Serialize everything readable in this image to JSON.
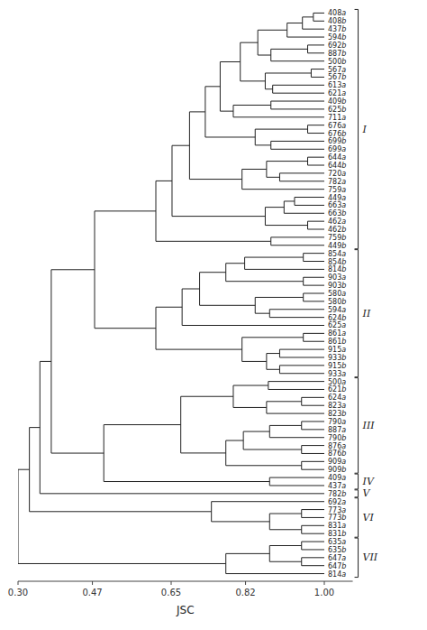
{
  "chart_data": {
    "type": "dendrogram",
    "xlabel": "JSC",
    "xlim": [
      0.3,
      1.065
    ],
    "xticks": [
      {
        "value": 0.3,
        "label": "0.30"
      },
      {
        "value": 0.47,
        "label": "0.47"
      },
      {
        "value": 0.65,
        "label": "0.65"
      },
      {
        "value": 0.82,
        "label": "0.82"
      },
      {
        "value": 1.0,
        "label": "1.00"
      }
    ],
    "leaf_height": 1.0,
    "categories": [
      "408a",
      "408b",
      "437b",
      "594b",
      "692b",
      "887b",
      "500b",
      "567a",
      "567b",
      "613a",
      "621a",
      "409b",
      "625b",
      "711a",
      "676a",
      "676b",
      "699b",
      "699a",
      "644a",
      "644b",
      "720a",
      "782a",
      "759a",
      "449a",
      "663a",
      "663b",
      "462a",
      "462b",
      "759b",
      "449b",
      "854a",
      "854b",
      "814b",
      "903a",
      "903b",
      "580a",
      "580b",
      "594a",
      "624b",
      "625a",
      "861a",
      "861b",
      "915a",
      "933b",
      "915b",
      "933a",
      "500a",
      "621b",
      "624a",
      "823a",
      "823b",
      "790a",
      "887a",
      "790b",
      "876a",
      "876b",
      "909a",
      "909b",
      "409a",
      "437a",
      "782b",
      "692a",
      "773a",
      "773b",
      "831a",
      "831b",
      "635a",
      "635b",
      "647a",
      "647b",
      "814a"
    ],
    "merges": [
      {
        "left": 0,
        "right": 1,
        "height": 0.975
      },
      {
        "left": 71,
        "right": 2,
        "height": 0.95
      },
      {
        "left": 72,
        "right": 3,
        "height": 0.915
      },
      {
        "left": 4,
        "right": 5,
        "height": 0.962
      },
      {
        "left": 74,
        "right": 6,
        "height": 0.878
      },
      {
        "left": 73,
        "right": 75,
        "height": 0.848
      },
      {
        "left": 7,
        "right": 8,
        "height": 0.97
      },
      {
        "left": 9,
        "right": 10,
        "height": 0.882
      },
      {
        "left": 77,
        "right": 78,
        "height": 0.865
      },
      {
        "left": 76,
        "right": 79,
        "height": 0.808
      },
      {
        "left": 11,
        "right": 12,
        "height": 0.878
      },
      {
        "left": 81,
        "right": 13,
        "height": 0.792
      },
      {
        "left": 80,
        "right": 82,
        "height": 0.762
      },
      {
        "left": 14,
        "right": 15,
        "height": 0.962
      },
      {
        "left": 16,
        "right": 17,
        "height": 0.878
      },
      {
        "left": 84,
        "right": 85,
        "height": 0.842
      },
      {
        "left": 83,
        "right": 86,
        "height": 0.728
      },
      {
        "left": 18,
        "right": 19,
        "height": 0.962
      },
      {
        "left": 20,
        "right": 21,
        "height": 0.898
      },
      {
        "left": 88,
        "right": 89,
        "height": 0.868
      },
      {
        "left": 90,
        "right": 22,
        "height": 0.812
      },
      {
        "left": 87,
        "right": 91,
        "height": 0.692
      },
      {
        "left": 23,
        "right": 24,
        "height": 0.932
      },
      {
        "left": 93,
        "right": 25,
        "height": 0.908
      },
      {
        "left": 26,
        "right": 27,
        "height": 0.962
      },
      {
        "left": 94,
        "right": 95,
        "height": 0.865
      },
      {
        "left": 92,
        "right": 96,
        "height": 0.652
      },
      {
        "left": 28,
        "right": 29,
        "height": 0.878
      },
      {
        "left": 97,
        "right": 98,
        "height": 0.615
      },
      {
        "left": 30,
        "right": 31,
        "height": 0.952
      },
      {
        "left": 100,
        "right": 32,
        "height": 0.818
      },
      {
        "left": 33,
        "right": 34,
        "height": 0.952
      },
      {
        "left": 101,
        "right": 102,
        "height": 0.775
      },
      {
        "left": 35,
        "right": 36,
        "height": 0.952
      },
      {
        "left": 37,
        "right": 38,
        "height": 0.875
      },
      {
        "left": 104,
        "right": 105,
        "height": 0.842
      },
      {
        "left": 103,
        "right": 106,
        "height": 0.715
      },
      {
        "left": 107,
        "right": 39,
        "height": 0.675
      },
      {
        "left": 40,
        "right": 41,
        "height": 0.952
      },
      {
        "left": 42,
        "right": 43,
        "height": 0.898
      },
      {
        "left": 44,
        "right": 45,
        "height": 0.898
      },
      {
        "left": 110,
        "right": 111,
        "height": 0.868
      },
      {
        "left": 109,
        "right": 112,
        "height": 0.812
      },
      {
        "left": 108,
        "right": 113,
        "height": 0.615
      },
      {
        "left": 99,
        "right": 114,
        "height": 0.475
      },
      {
        "left": 46,
        "right": 47,
        "height": 0.872
      },
      {
        "left": 48,
        "right": 49,
        "height": 0.948
      },
      {
        "left": 117,
        "right": 50,
        "height": 0.868
      },
      {
        "left": 116,
        "right": 118,
        "height": 0.792
      },
      {
        "left": 51,
        "right": 52,
        "height": 0.948
      },
      {
        "left": 120,
        "right": 53,
        "height": 0.875
      },
      {
        "left": 54,
        "right": 55,
        "height": 0.948
      },
      {
        "left": 121,
        "right": 122,
        "height": 0.815
      },
      {
        "left": 56,
        "right": 57,
        "height": 0.948
      },
      {
        "left": 123,
        "right": 124,
        "height": 0.775
      },
      {
        "left": 119,
        "right": 125,
        "height": 0.672
      },
      {
        "left": 58,
        "right": 59,
        "height": 0.875
      },
      {
        "left": 126,
        "right": 127,
        "height": 0.496
      },
      {
        "left": 115,
        "right": 128,
        "height": 0.376
      },
      {
        "left": 129,
        "right": 60,
        "height": 0.35
      },
      {
        "left": 62,
        "right": 63,
        "height": 0.948
      },
      {
        "left": 64,
        "right": 65,
        "height": 0.948
      },
      {
        "left": 131,
        "right": 132,
        "height": 0.875
      },
      {
        "left": 61,
        "right": 133,
        "height": 0.742
      },
      {
        "left": 130,
        "right": 134,
        "height": 0.326
      },
      {
        "left": 66,
        "right": 67,
        "height": 0.948
      },
      {
        "left": 68,
        "right": 69,
        "height": 0.948
      },
      {
        "left": 136,
        "right": 137,
        "height": 0.875
      },
      {
        "left": 138,
        "right": 70,
        "height": 0.775
      },
      {
        "left": 135,
        "right": 139,
        "height": 0.3
      }
    ],
    "groups": [
      {
        "name": "I",
        "from": 0,
        "to": 29
      },
      {
        "name": "II",
        "from": 30,
        "to": 45
      },
      {
        "name": "III",
        "from": 46,
        "to": 57
      },
      {
        "name": "IV",
        "from": 58,
        "to": 59
      },
      {
        "name": "V",
        "from": 60,
        "to": 60
      },
      {
        "name": "VI",
        "from": 61,
        "to": 65
      },
      {
        "name": "VII",
        "from": 66,
        "to": 70
      }
    ]
  }
}
